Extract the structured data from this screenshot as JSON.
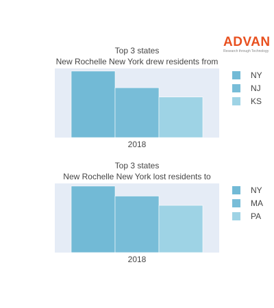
{
  "brand": {
    "name": "ADVAN",
    "tagline": "Research through Technology"
  },
  "colors": {
    "plot_bg": "#e5ecf6",
    "series": [
      "#72bad6",
      "#78bdd8",
      "#9ed3e5"
    ]
  },
  "chart_data": [
    {
      "type": "bar",
      "title": "Top 3 states",
      "subtitle": "New Rochelle New York drew residents from",
      "categories": [
        "2018"
      ],
      "series": [
        {
          "name": "NY",
          "values": [
            100
          ]
        },
        {
          "name": "NJ",
          "values": [
            75
          ]
        },
        {
          "name": "KS",
          "values": [
            61
          ]
        }
      ],
      "ylim": [
        0,
        104
      ],
      "grid": false,
      "legend": "right"
    },
    {
      "type": "bar",
      "title": "Top 3 states",
      "subtitle": "New Rochelle New York lost residents to",
      "categories": [
        "2018"
      ],
      "series": [
        {
          "name": "NY",
          "values": [
            100
          ]
        },
        {
          "name": "MA",
          "values": [
            85
          ]
        },
        {
          "name": "PA",
          "values": [
            71
          ]
        }
      ],
      "ylim": [
        0,
        104
      ],
      "grid": false,
      "legend": "right"
    }
  ]
}
